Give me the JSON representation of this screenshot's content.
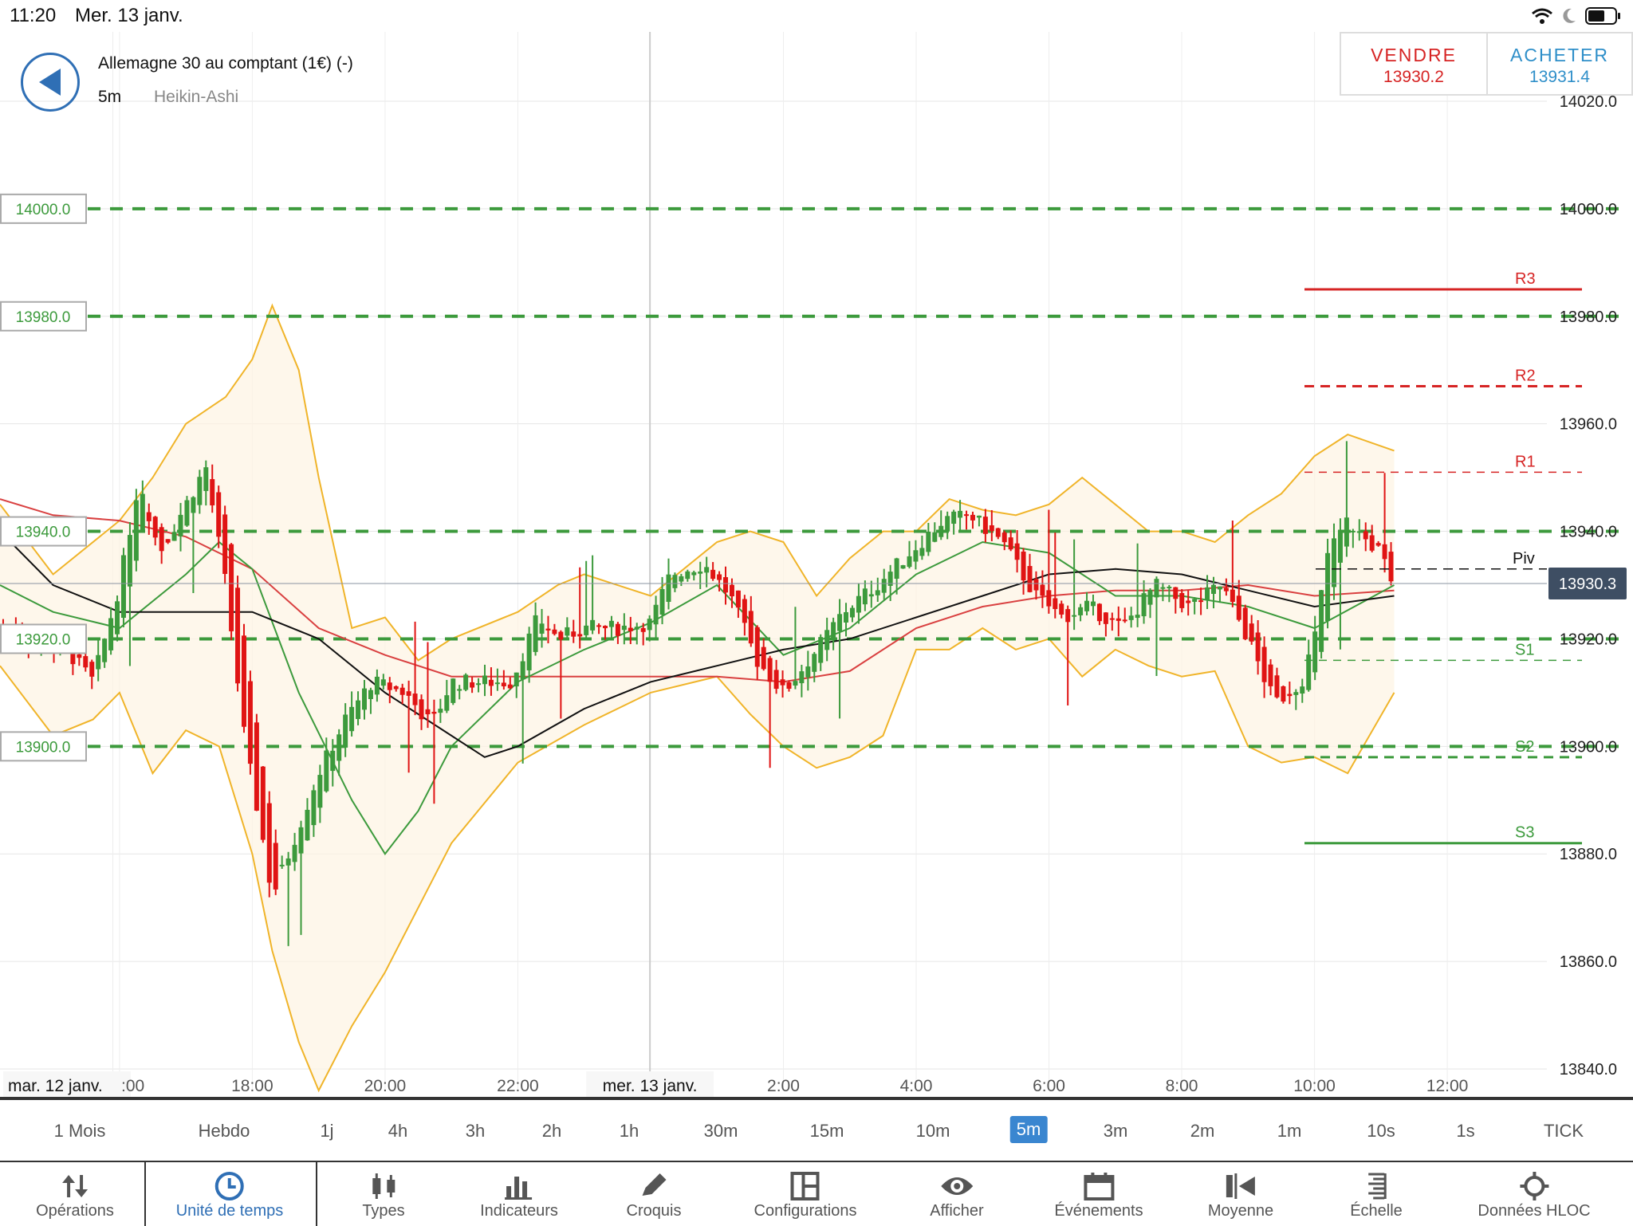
{
  "status_bar": {
    "time": "11:20",
    "date": "Mer. 13 janv."
  },
  "header": {
    "instrument": "Allemagne 30 au comptant (1€) (-)",
    "timeframe": "5m",
    "chart_type_label": "Heikin-Ashi"
  },
  "trade": {
    "sell_label": "VENDRE",
    "sell_price": "13930.2",
    "buy_label": "ACHETER",
    "buy_price": "13931.4"
  },
  "colors": {
    "up": "#3c9a3c",
    "down": "#e01414",
    "bollinger": "#f0b429",
    "ma_red": "#d94040",
    "ma_green": "#3c9a3c",
    "ma_black": "#111111",
    "accent": "#2f6fb5"
  },
  "chart_data": {
    "type": "candlestick",
    "y_axis_ticks": [
      "14020.0",
      "14000.0",
      "13980.0",
      "13960.0",
      "13940.0",
      "13920.0",
      "13900.0",
      "13880.0",
      "13860.0",
      "13840.0"
    ],
    "ylim": [
      13836,
      14024
    ],
    "x_axis_ticks": [
      "mar. 12 janv.",
      ":00",
      "18:00",
      "20:00",
      "22:00",
      "mer. 13 janv.",
      "2:00",
      "4:00",
      "6:00",
      "8:00",
      "10:00",
      "12:00"
    ],
    "x_tick_values": [
      15.9,
      16.0,
      18,
      20,
      22,
      23.99,
      26,
      28,
      30,
      32,
      34,
      36
    ],
    "xlim": [
      14.2,
      37.5
    ],
    "current_price": "13930.3",
    "alert_levels": [
      {
        "label": "14000.0",
        "value": 14000
      },
      {
        "label": "13980.0",
        "value": 13980
      },
      {
        "label": "13940.0",
        "value": 13940
      },
      {
        "label": "13920.0",
        "value": 13920
      },
      {
        "label": "13900.0",
        "value": 13900
      }
    ],
    "pivot_levels": [
      {
        "label": "R3",
        "value": 13985,
        "style": "solid",
        "color": "#d62424"
      },
      {
        "label": "R2",
        "value": 13967,
        "style": "dashed",
        "color": "#d62424"
      },
      {
        "label": "R1",
        "value": 13951,
        "style": "dashed-thin",
        "color": "#d62424"
      },
      {
        "label": "Piv",
        "value": 13933,
        "style": "dashed",
        "color": "#111111"
      },
      {
        "label": "S1",
        "value": 13916,
        "style": "dashed-thin",
        "color": "#3c9a3c"
      },
      {
        "label": "S2",
        "value": 13898,
        "style": "dashed",
        "color": "#3c9a3c"
      },
      {
        "label": "S3",
        "value": 13882,
        "style": "solid",
        "color": "#3c9a3c"
      }
    ],
    "price_path": [
      [
        14.2,
        13922
      ],
      [
        15.2,
        13918
      ],
      [
        15.6,
        13912
      ],
      [
        16.0,
        13930
      ],
      [
        16.3,
        13950
      ],
      [
        16.6,
        13936
      ],
      [
        17.0,
        13945
      ],
      [
        17.3,
        13952
      ],
      [
        17.6,
        13930
      ],
      [
        17.9,
        13900
      ],
      [
        18.2,
        13880
      ],
      [
        18.3,
        13872
      ],
      [
        18.7,
        13885
      ],
      [
        19.0,
        13895
      ],
      [
        19.4,
        13905
      ],
      [
        19.8,
        13912
      ],
      [
        20.3,
        13910
      ],
      [
        20.7,
        13904
      ],
      [
        21.0,
        13912
      ],
      [
        21.5,
        13912
      ],
      [
        21.9,
        13912
      ],
      [
        22.3,
        13924
      ],
      [
        22.6,
        13920
      ],
      [
        23.0,
        13922
      ],
      [
        23.5,
        13922
      ],
      [
        24.0,
        13923
      ],
      [
        24.3,
        13932
      ],
      [
        24.8,
        13934
      ],
      [
        25.2,
        13928
      ],
      [
        25.6,
        13916
      ],
      [
        26.0,
        13910
      ],
      [
        26.5,
        13918
      ],
      [
        26.9,
        13925
      ],
      [
        27.4,
        13930
      ],
      [
        27.9,
        13936
      ],
      [
        28.4,
        13942
      ],
      [
        28.8,
        13943
      ],
      [
        29.3,
        13938
      ],
      [
        29.8,
        13928
      ],
      [
        30.2,
        13924
      ],
      [
        30.6,
        13926
      ],
      [
        31.1,
        13922
      ],
      [
        31.6,
        13930
      ],
      [
        32.1,
        13926
      ],
      [
        32.6,
        13930
      ],
      [
        33.0,
        13920
      ],
      [
        33.4,
        13908
      ],
      [
        33.8,
        13912
      ],
      [
        34.0,
        13920
      ],
      [
        34.2,
        13936
      ],
      [
        34.5,
        13942
      ],
      [
        34.8,
        13938
      ],
      [
        35.0,
        13936
      ],
      [
        35.2,
        13928
      ]
    ],
    "moving_average_red": [
      [
        14.2,
        13946
      ],
      [
        15.0,
        13943
      ],
      [
        16.0,
        13942
      ],
      [
        17.0,
        13939
      ],
      [
        18.0,
        13933
      ],
      [
        19.0,
        13922
      ],
      [
        20.0,
        13917
      ],
      [
        21.0,
        13913
      ],
      [
        22.0,
        13913
      ],
      [
        23.0,
        13913
      ],
      [
        24.0,
        13913
      ],
      [
        25.0,
        13913
      ],
      [
        26.0,
        13912
      ],
      [
        27.0,
        13914
      ],
      [
        28.0,
        13922
      ],
      [
        29.0,
        13926
      ],
      [
        30.0,
        13928
      ],
      [
        31.0,
        13929
      ],
      [
        32.0,
        13929
      ],
      [
        33.0,
        13930
      ],
      [
        34.0,
        13928
      ],
      [
        35.2,
        13929
      ]
    ],
    "moving_average_black": [
      [
        14.2,
        13940
      ],
      [
        15.0,
        13930
      ],
      [
        16.0,
        13925
      ],
      [
        17.0,
        13925
      ],
      [
        18.0,
        13925
      ],
      [
        19.0,
        13920
      ],
      [
        20.0,
        13910
      ],
      [
        21.0,
        13902
      ],
      [
        21.5,
        13898
      ],
      [
        22.0,
        13900
      ],
      [
        23.0,
        13907
      ],
      [
        24.0,
        13912
      ],
      [
        25.0,
        13915
      ],
      [
        26.0,
        13918
      ],
      [
        27.0,
        13920
      ],
      [
        28.0,
        13924
      ],
      [
        29.0,
        13928
      ],
      [
        30.0,
        13932
      ],
      [
        31.0,
        13933
      ],
      [
        32.0,
        13932
      ],
      [
        33.0,
        13929
      ],
      [
        34.0,
        13926
      ],
      [
        35.2,
        13928
      ]
    ],
    "moving_average_green": [
      [
        14.2,
        13930
      ],
      [
        15.0,
        13925
      ],
      [
        16.0,
        13922
      ],
      [
        17.0,
        13932
      ],
      [
        17.5,
        13938
      ],
      [
        18.0,
        13933
      ],
      [
        18.7,
        13910
      ],
      [
        19.5,
        13890
      ],
      [
        20.0,
        13880
      ],
      [
        20.5,
        13888
      ],
      [
        21.0,
        13900
      ],
      [
        22.0,
        13912
      ],
      [
        23.0,
        13918
      ],
      [
        24.0,
        13923
      ],
      [
        25.0,
        13930
      ],
      [
        26.0,
        13917
      ],
      [
        27.0,
        13922
      ],
      [
        28.0,
        13932
      ],
      [
        29.0,
        13938
      ],
      [
        30.0,
        13936
      ],
      [
        31.0,
        13928
      ],
      [
        32.0,
        13928
      ],
      [
        33.0,
        13926
      ],
      [
        34.0,
        13922
      ],
      [
        35.2,
        13930
      ]
    ],
    "bollinger_upper": [
      [
        14.2,
        13945
      ],
      [
        15.0,
        13932
      ],
      [
        16.0,
        13942
      ],
      [
        16.5,
        13950
      ],
      [
        17.0,
        13960
      ],
      [
        17.6,
        13965
      ],
      [
        18.0,
        13972
      ],
      [
        18.3,
        13982
      ],
      [
        18.7,
        13970
      ],
      [
        19.0,
        13950
      ],
      [
        19.5,
        13922
      ],
      [
        20.0,
        13924
      ],
      [
        20.5,
        13916
      ],
      [
        21.0,
        13920
      ],
      [
        22.0,
        13925
      ],
      [
        22.6,
        13930
      ],
      [
        23.0,
        13932
      ],
      [
        24.0,
        13928
      ],
      [
        25.0,
        13938
      ],
      [
        25.5,
        13940
      ],
      [
        26.0,
        13938
      ],
      [
        26.5,
        13928
      ],
      [
        27.0,
        13935
      ],
      [
        27.5,
        13940
      ],
      [
        28.0,
        13940
      ],
      [
        28.5,
        13946
      ],
      [
        29.0,
        13944
      ],
      [
        29.5,
        13943
      ],
      [
        30.0,
        13945
      ],
      [
        30.5,
        13950
      ],
      [
        31.0,
        13945
      ],
      [
        31.5,
        13940
      ],
      [
        32.0,
        13940
      ],
      [
        32.5,
        13938
      ],
      [
        33.0,
        13943
      ],
      [
        33.5,
        13947
      ],
      [
        34.0,
        13954
      ],
      [
        34.5,
        13958
      ],
      [
        35.2,
        13955
      ]
    ],
    "bollinger_lower": [
      [
        14.2,
        13915
      ],
      [
        15.0,
        13902
      ],
      [
        15.6,
        13905
      ],
      [
        16.0,
        13910
      ],
      [
        16.5,
        13895
      ],
      [
        17.0,
        13903
      ],
      [
        17.5,
        13900
      ],
      [
        18.0,
        13880
      ],
      [
        18.3,
        13862
      ],
      [
        18.7,
        13845
      ],
      [
        19.0,
        13836
      ],
      [
        19.5,
        13848
      ],
      [
        20.0,
        13858
      ],
      [
        20.5,
        13870
      ],
      [
        21.0,
        13882
      ],
      [
        22.0,
        13897
      ],
      [
        23.0,
        13904
      ],
      [
        24.0,
        13910
      ],
      [
        25.0,
        13913
      ],
      [
        25.5,
        13906
      ],
      [
        26.0,
        13900
      ],
      [
        26.5,
        13896
      ],
      [
        27.0,
        13898
      ],
      [
        27.5,
        13902
      ],
      [
        28.0,
        13918
      ],
      [
        28.5,
        13918
      ],
      [
        29.0,
        13922
      ],
      [
        29.5,
        13918
      ],
      [
        30.0,
        13920
      ],
      [
        30.5,
        13913
      ],
      [
        31.0,
        13918
      ],
      [
        31.5,
        13915
      ],
      [
        32.0,
        13913
      ],
      [
        32.5,
        13914
      ],
      [
        33.0,
        13900
      ],
      [
        33.5,
        13897
      ],
      [
        34.0,
        13898
      ],
      [
        34.5,
        13895
      ],
      [
        35.2,
        13910
      ]
    ]
  },
  "periods": {
    "items": [
      "1 Mois",
      "Hebdo",
      "1j",
      "4h",
      "3h",
      "2h",
      "1h",
      "30m",
      "15m",
      "10m",
      "5m",
      "3m",
      "2m",
      "1m",
      "10s",
      "1s",
      "TICK"
    ],
    "active": "5m"
  },
  "nav": {
    "items": [
      {
        "label": "Opérations",
        "icon": "arrows-updown-icon"
      },
      {
        "label": "Unité de temps",
        "icon": "clock-icon"
      },
      {
        "label": "Types",
        "icon": "candles-icon"
      },
      {
        "label": "Indicateurs",
        "icon": "bars-icon"
      },
      {
        "label": "Croquis",
        "icon": "pencil-icon"
      },
      {
        "label": "Configurations",
        "icon": "layout-icon"
      },
      {
        "label": "Afficher",
        "icon": "eye-icon"
      },
      {
        "label": "Événements",
        "icon": "calendar-icon"
      },
      {
        "label": "Moyenne",
        "icon": "average-icon"
      },
      {
        "label": "Échelle",
        "icon": "scale-icon"
      },
      {
        "label": "Données HLOC",
        "icon": "crosshair-icon"
      }
    ],
    "active": "Unité de temps"
  }
}
